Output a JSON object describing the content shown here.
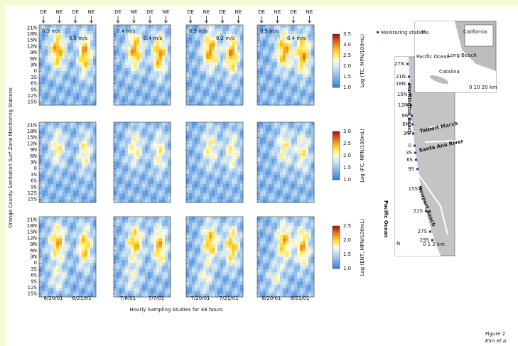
{
  "figure": {
    "columns": [
      {
        "top_labels": [
          "DE",
          "NE",
          "DE",
          "NE"
        ],
        "speeds": [
          "0.3 m/s",
          "0.5 m/s"
        ],
        "dates": [
          "6/20/01",
          "6/21/01"
        ]
      },
      {
        "top_labels": [
          "DE",
          "NE",
          "DE",
          "NE"
        ],
        "speeds": [
          "0.4 m/s",
          "0.4 m/s"
        ],
        "dates": [
          "7/6/01",
          "7/7/01"
        ]
      },
      {
        "top_labels": [
          "DE",
          "NE",
          "DE",
          "NE"
        ],
        "speeds": [
          "0.5 m/s",
          "0.2 m/s"
        ],
        "dates": [
          "7/20/01",
          "7/21/01"
        ]
      },
      {
        "top_labels": [
          "DE",
          "NE",
          "DE",
          "NE"
        ],
        "speeds": [
          "0.5 m/s",
          "0.4 m/s"
        ],
        "dates": [
          "8/20/01",
          "8/21/01"
        ]
      }
    ],
    "rows": [
      {
        "stations": [
          "21N",
          "18N",
          "15N",
          "12N",
          "9N",
          "6N",
          "3N",
          "0",
          "3S",
          "6S",
          "9S",
          "12S",
          "15S"
        ],
        "colorbar": {
          "ticks": [
            "3.5",
            "3.0",
            "2.5",
            "2.0",
            "1.5",
            "1.0"
          ],
          "label": "Log (TC, MPN/100mL)"
        }
      },
      {
        "stations": [
          "21N",
          "18N",
          "15N",
          "12N",
          "9N",
          "6N",
          "3N",
          "0",
          "3S",
          "6S",
          "9S",
          "12S",
          "15S"
        ],
        "colorbar": {
          "ticks": [
            "3.0",
            "2.5",
            "2.0",
            "1.5",
            "1.0"
          ],
          "label": "Log (FC, MPN/100mL)"
        }
      },
      {
        "stations": [
          "21N",
          "18N",
          "15N",
          "12N",
          "9N",
          "6N",
          "3N",
          "0",
          "3S",
          "6S",
          "9S",
          "12S",
          "15S"
        ],
        "colorbar": {
          "ticks": [
            "2.5",
            "2.0",
            "1.5",
            "1.0"
          ],
          "label": "Log (ENT, MPN/100mL)"
        }
      }
    ],
    "y_axis_title": "Orange County Sanitation Surf Zone Monitoring Stations",
    "x_axis_title": "Hourly Sampling Studies for 48 hours",
    "map": {
      "legend": "Monitoring stations",
      "inset": [
        "California",
        "Pacific Ocean",
        "Long Beach",
        "Catalina",
        "N",
        "0 10 20 km"
      ],
      "stations": [
        "27N",
        "21N",
        "18N",
        "15N",
        "12N",
        "9N",
        "6N",
        "3N",
        "0",
        "3S",
        "6S",
        "9S",
        "15S",
        "21S",
        "27S",
        "29S"
      ],
      "places": [
        "Huntington Beach",
        "Talbert Marsh",
        "Santa Ana River",
        "Newport Beach",
        "Pacific Ocean"
      ],
      "north": "N",
      "scale": "0 1 2 km"
    },
    "caption": [
      "Figure 2",
      "Kim et a"
    ]
  }
}
